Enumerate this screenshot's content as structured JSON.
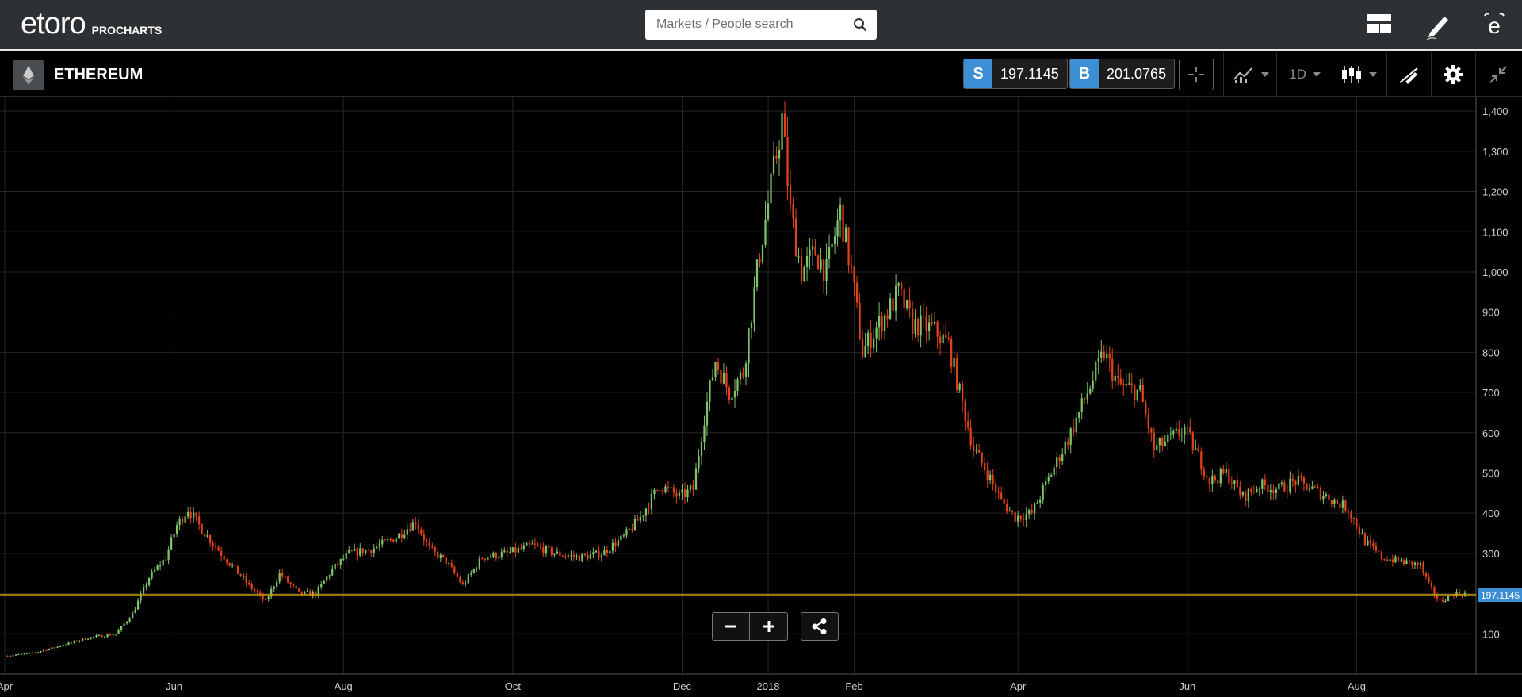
{
  "header": {
    "logo_text": "etoro",
    "logo_sub": "PROCHARTS",
    "search_placeholder": "Markets / People search",
    "icons": [
      "layout-icon",
      "pencil-icon",
      "etoro-profile-icon"
    ]
  },
  "instrument": {
    "name": "ETHEREUM",
    "icon": "ethereum-icon",
    "sell_label": "S",
    "sell_price": "197.1145",
    "buy_label": "B",
    "buy_price": "201.0765",
    "period": "1D"
  },
  "toolbar_icons": [
    "crosshair-icon",
    "indicators-icon",
    "candlestick-type-icon",
    "drawing-icon",
    "gear-icon",
    "collapse-icon"
  ],
  "colors": {
    "up_candle": "#7fc26b",
    "down_candle": "#e0421a",
    "price_line": "#c8a000",
    "price_tag": "#3c8fd4",
    "accent_blue": "#3c8fd4"
  },
  "chart_data": {
    "type": "candlestick",
    "instrument": "ETHEREUM",
    "interval": "1D",
    "current_price": 197.1145,
    "current_price_label": "197.1145",
    "y_ticks": [
      100,
      200,
      300,
      400,
      500,
      600,
      700,
      800,
      900,
      1000,
      1100,
      1200,
      1300,
      1400
    ],
    "y_tick_labels": [
      "100",
      "",
      "300",
      "400",
      "500",
      "600",
      "700",
      "800",
      "900",
      "1,000",
      "1,100",
      "1,200",
      "1,300",
      "1,400"
    ],
    "ylim": [
      0,
      1420
    ],
    "x_tick_labels": [
      "Apr",
      "Jun",
      "Aug",
      "Oct",
      "Dec",
      "2018",
      "Feb",
      "Apr",
      "Jun",
      "Aug"
    ],
    "x_tick_days": [
      0,
      61,
      122,
      183,
      244,
      275,
      306,
      365,
      426,
      487
    ],
    "xlim_days": [
      0,
      530
    ],
    "price_path": [
      [
        0,
        45
      ],
      [
        10,
        52
      ],
      [
        20,
        70
      ],
      [
        30,
        90
      ],
      [
        40,
        100
      ],
      [
        46,
        150
      ],
      [
        52,
        240
      ],
      [
        58,
        290
      ],
      [
        62,
        370
      ],
      [
        66,
        410
      ],
      [
        71,
        360
      ],
      [
        78,
        300
      ],
      [
        83,
        260
      ],
      [
        88,
        220
      ],
      [
        94,
        180
      ],
      [
        99,
        250
      ],
      [
        106,
        200
      ],
      [
        112,
        200
      ],
      [
        118,
        260
      ],
      [
        124,
        300
      ],
      [
        132,
        310
      ],
      [
        141,
        340
      ],
      [
        148,
        380
      ],
      [
        153,
        310
      ],
      [
        159,
        280
      ],
      [
        165,
        220
      ],
      [
        172,
        290
      ],
      [
        181,
        300
      ],
      [
        190,
        320
      ],
      [
        198,
        300
      ],
      [
        207,
        290
      ],
      [
        215,
        300
      ],
      [
        223,
        340
      ],
      [
        229,
        390
      ],
      [
        236,
        470
      ],
      [
        243,
        440
      ],
      [
        248,
        460
      ],
      [
        252,
        640
      ],
      [
        256,
        780
      ],
      [
        261,
        700
      ],
      [
        266,
        750
      ],
      [
        272,
        1050
      ],
      [
        277,
        1250
      ],
      [
        280,
        1380
      ],
      [
        283,
        1150
      ],
      [
        287,
        1000
      ],
      [
        292,
        1050
      ],
      [
        296,
        1000
      ],
      [
        301,
        1150
      ],
      [
        305,
        1000
      ],
      [
        309,
        800
      ],
      [
        313,
        850
      ],
      [
        318,
        900
      ],
      [
        322,
        950
      ],
      [
        327,
        870
      ],
      [
        334,
        860
      ],
      [
        340,
        820
      ],
      [
        344,
        700
      ],
      [
        349,
        560
      ],
      [
        354,
        500
      ],
      [
        359,
        430
      ],
      [
        364,
        390
      ],
      [
        370,
        400
      ],
      [
        377,
        500
      ],
      [
        384,
        600
      ],
      [
        390,
        700
      ],
      [
        396,
        800
      ],
      [
        401,
        720
      ],
      [
        409,
        700
      ],
      [
        414,
        560
      ],
      [
        419,
        580
      ],
      [
        425,
        610
      ],
      [
        430,
        540
      ],
      [
        434,
        480
      ],
      [
        440,
        500
      ],
      [
        446,
        440
      ],
      [
        452,
        470
      ],
      [
        459,
        460
      ],
      [
        465,
        480
      ],
      [
        471,
        460
      ],
      [
        477,
        440
      ],
      [
        484,
        410
      ],
      [
        490,
        330
      ],
      [
        496,
        290
      ],
      [
        503,
        280
      ],
      [
        510,
        270
      ],
      [
        513,
        220
      ],
      [
        517,
        180
      ],
      [
        522,
        200
      ],
      [
        526,
        200
      ]
    ]
  }
}
